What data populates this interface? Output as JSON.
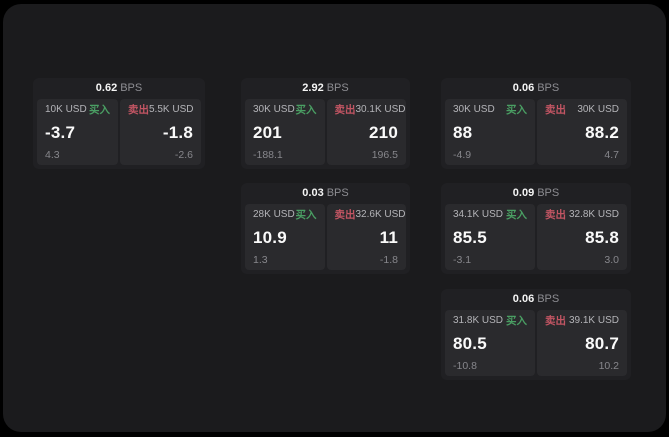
{
  "labels": {
    "buy": "买入",
    "sell": "卖出",
    "bps_unit": "BPS"
  },
  "colors": {
    "buy": "#4a9e63",
    "sell": "#c25563",
    "window_bg": "#1b1b1d",
    "card_bg": "#202023",
    "panel_bg": "#2a2a2d",
    "value_text": "#fafafa",
    "muted_text": "#8d8d92"
  },
  "cards": [
    {
      "bps": "0.62",
      "buy": {
        "size": "10K USD",
        "value": "-3.7",
        "sub": "4.3"
      },
      "sell": {
        "size": "5.5K USD",
        "value": "-1.8",
        "sub": "-2.6"
      }
    },
    {
      "bps": "2.92",
      "buy": {
        "size": "30K USD",
        "value": "201",
        "sub": "-188.1"
      },
      "sell": {
        "size": "30.1K USD",
        "value": "210",
        "sub": "196.5"
      }
    },
    {
      "bps": "0.06",
      "buy": {
        "size": "30K USD",
        "value": "88",
        "sub": "-4.9"
      },
      "sell": {
        "size": "30K USD",
        "value": "88.2",
        "sub": "4.7"
      }
    },
    {
      "bps": "0.03",
      "buy": {
        "size": "28K USD",
        "value": "10.9",
        "sub": "1.3"
      },
      "sell": {
        "size": "32.6K USD",
        "value": "11",
        "sub": "-1.8"
      }
    },
    {
      "bps": "0.09",
      "buy": {
        "size": "34.1K USD",
        "value": "85.5",
        "sub": "-3.1"
      },
      "sell": {
        "size": "32.8K USD",
        "value": "85.8",
        "sub": "3.0"
      }
    },
    {
      "bps": "0.06",
      "buy": {
        "size": "31.8K USD",
        "value": "80.5",
        "sub": "-10.8"
      },
      "sell": {
        "size": "39.1K USD",
        "value": "80.7",
        "sub": "10.2"
      }
    }
  ]
}
